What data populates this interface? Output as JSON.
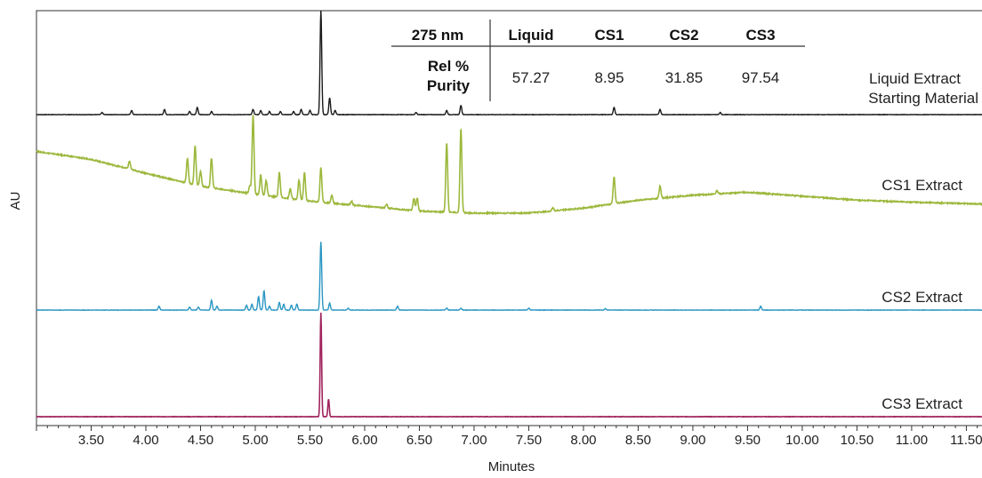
{
  "chart_data": {
    "type": "line",
    "xlabel": "Minutes",
    "ylabel": "AU",
    "xlim": [
      3.0,
      11.7
    ],
    "x_ticks": [
      "3.50",
      "4.00",
      "4.50",
      "5.00",
      "5.50",
      "6.00",
      "6.50",
      "7.00",
      "7.50",
      "8.00",
      "8.50",
      "9.00",
      "9.50",
      "10.00",
      "10.50",
      "11.00",
      "11.50"
    ],
    "minor_tick_step": 0.1,
    "grid": false,
    "series": [
      {
        "name": "Liquid Extract Starting Material",
        "color": "#1a1a1a",
        "baseline": 0.0,
        "drift": [],
        "peaks": [
          [
            3.6,
            0.02
          ],
          [
            3.87,
            0.04
          ],
          [
            4.17,
            0.05
          ],
          [
            4.4,
            0.03
          ],
          [
            4.47,
            0.07
          ],
          [
            4.6,
            0.03
          ],
          [
            4.98,
            0.05
          ],
          [
            5.05,
            0.04
          ],
          [
            5.13,
            0.03
          ],
          [
            5.23,
            0.03
          ],
          [
            5.35,
            0.03
          ],
          [
            5.42,
            0.05
          ],
          [
            5.5,
            0.04
          ],
          [
            5.6,
            1.0
          ],
          [
            5.68,
            0.16
          ],
          [
            5.73,
            0.04
          ],
          [
            6.47,
            0.02
          ],
          [
            6.75,
            0.04
          ],
          [
            6.88,
            0.09
          ],
          [
            8.28,
            0.07
          ],
          [
            8.7,
            0.05
          ],
          [
            9.25,
            0.02
          ]
        ]
      },
      {
        "name": "CS1 Extract",
        "color": "#9cb83c",
        "baseline": 0.0,
        "drift": [
          [
            3.0,
            0.55
          ],
          [
            3.5,
            0.47
          ],
          [
            4.0,
            0.33
          ],
          [
            4.5,
            0.2
          ],
          [
            5.0,
            0.12
          ],
          [
            5.5,
            0.05
          ],
          [
            6.0,
            0.0
          ],
          [
            6.5,
            -0.05
          ],
          [
            7.0,
            -0.07
          ],
          [
            7.5,
            -0.07
          ],
          [
            8.0,
            -0.02
          ],
          [
            8.5,
            0.06
          ],
          [
            9.0,
            0.11
          ],
          [
            9.5,
            0.14
          ],
          [
            10.0,
            0.1
          ],
          [
            10.5,
            0.06
          ],
          [
            11.0,
            0.04
          ],
          [
            11.7,
            0.02
          ]
        ],
        "peaks": [
          [
            3.85,
            0.08
          ],
          [
            4.38,
            0.25
          ],
          [
            4.45,
            0.4
          ],
          [
            4.5,
            0.15
          ],
          [
            4.6,
            0.3
          ],
          [
            4.95,
            0.08
          ],
          [
            4.98,
            0.8
          ],
          [
            5.05,
            0.2
          ],
          [
            5.1,
            0.15
          ],
          [
            5.22,
            0.25
          ],
          [
            5.32,
            0.1
          ],
          [
            5.4,
            0.2
          ],
          [
            5.45,
            0.28
          ],
          [
            5.6,
            0.35
          ],
          [
            5.7,
            0.08
          ],
          [
            5.88,
            0.04
          ],
          [
            6.2,
            0.04
          ],
          [
            6.45,
            0.12
          ],
          [
            6.48,
            0.13
          ],
          [
            6.75,
            0.7
          ],
          [
            6.88,
            0.85
          ],
          [
            7.72,
            0.03
          ],
          [
            8.28,
            0.27
          ],
          [
            8.7,
            0.12
          ],
          [
            9.22,
            0.03
          ]
        ]
      },
      {
        "name": "CS2 Extract",
        "color": "#2a96c3",
        "baseline": 0.0,
        "drift": [],
        "peaks": [
          [
            4.12,
            0.04
          ],
          [
            4.4,
            0.03
          ],
          [
            4.48,
            0.03
          ],
          [
            4.6,
            0.1
          ],
          [
            4.65,
            0.04
          ],
          [
            4.92,
            0.05
          ],
          [
            4.97,
            0.06
          ],
          [
            5.03,
            0.14
          ],
          [
            5.08,
            0.2
          ],
          [
            5.13,
            0.04
          ],
          [
            5.22,
            0.08
          ],
          [
            5.26,
            0.06
          ],
          [
            5.33,
            0.05
          ],
          [
            5.38,
            0.06
          ],
          [
            5.6,
            0.7
          ],
          [
            5.68,
            0.07
          ],
          [
            5.85,
            0.02
          ],
          [
            6.3,
            0.04
          ],
          [
            6.75,
            0.02
          ],
          [
            6.88,
            0.02
          ],
          [
            7.5,
            0.02
          ],
          [
            8.2,
            0.015
          ],
          [
            9.62,
            0.04
          ]
        ]
      },
      {
        "name": "CS3 Extract",
        "color": "#a0245e",
        "baseline": 0.0,
        "drift": [],
        "peaks": [
          [
            5.6,
            1.0
          ],
          [
            5.67,
            0.17
          ]
        ]
      }
    ],
    "table": {
      "header": [
        "275 nm",
        "Liquid",
        "CS1",
        "CS2",
        "CS3"
      ],
      "row_label_line1": "Rel %",
      "row_label_line2": "Purity",
      "values": [
        "57.27",
        "8.95",
        "31.85",
        "97.54"
      ]
    },
    "trace_labels": {
      "liquid_line1": "Liquid Extract",
      "liquid_line2": "Starting Material",
      "cs1": "CS1 Extract",
      "cs2": "CS2 Extract",
      "cs3": "CS3 Extract"
    }
  }
}
